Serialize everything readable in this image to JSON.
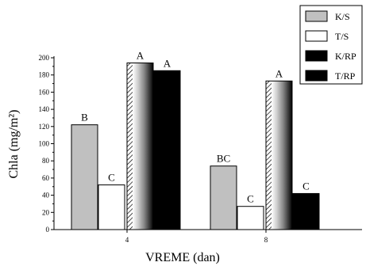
{
  "chart_data": {
    "type": "bar",
    "xlabel": "VREME (dan)",
    "ylabel": "Chla (mg/m²)",
    "ylim": [
      0,
      200
    ],
    "yticks": [
      0,
      20,
      40,
      60,
      80,
      100,
      120,
      140,
      160,
      180,
      200
    ],
    "categories": [
      "4",
      "8"
    ],
    "legend_position": "top-right",
    "series": [
      {
        "name": "K/S",
        "values": [
          122,
          74
        ],
        "letters": [
          "B",
          "BC"
        ],
        "fill": "light-gray",
        "color": "#c0c0c0"
      },
      {
        "name": "T/S",
        "values": [
          52,
          27
        ],
        "letters": [
          "C",
          "C"
        ],
        "fill": "white",
        "color": "#ffffff"
      },
      {
        "name": "K/RP",
        "values": [
          194,
          173
        ],
        "letters": [
          "A",
          "A"
        ],
        "fill": "gradient-gray",
        "color": "#000000"
      },
      {
        "name": "T/RP",
        "values": [
          185,
          42
        ],
        "letters": [
          "A",
          "C"
        ],
        "fill": "black",
        "color": "#000000"
      }
    ]
  }
}
